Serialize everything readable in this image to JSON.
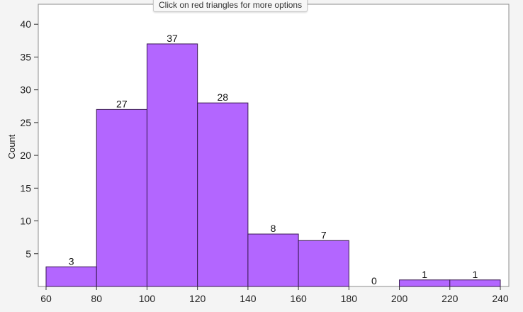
{
  "tooltip": {
    "text": "Click on red triangles for more options"
  },
  "chart_data": {
    "type": "bar",
    "ylabel": "Count",
    "xlabel": "",
    "xlim": [
      60,
      240
    ],
    "ylim": [
      0,
      43
    ],
    "bin_width": 20,
    "bins": [
      {
        "x0": 60,
        "x1": 80,
        "count": 3
      },
      {
        "x0": 80,
        "x1": 100,
        "count": 27
      },
      {
        "x0": 100,
        "x1": 120,
        "count": 37
      },
      {
        "x0": 120,
        "x1": 140,
        "count": 28
      },
      {
        "x0": 140,
        "x1": 160,
        "count": 8
      },
      {
        "x0": 160,
        "x1": 180,
        "count": 7
      },
      {
        "x0": 180,
        "x1": 200,
        "count": 0
      },
      {
        "x0": 200,
        "x1": 220,
        "count": 1
      },
      {
        "x0": 220,
        "x1": 240,
        "count": 1
      }
    ],
    "x_ticks": [
      60,
      80,
      100,
      120,
      140,
      160,
      180,
      200,
      220,
      240
    ],
    "y_ticks": [
      5,
      10,
      15,
      20,
      25,
      30,
      35,
      40
    ],
    "bar_color": "#b366ff",
    "bar_edge_color": "#3a1a52",
    "grid": false,
    "legend": "none"
  }
}
